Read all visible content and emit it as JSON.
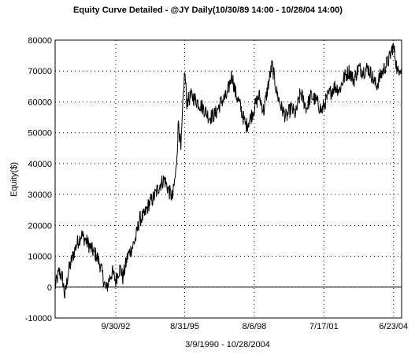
{
  "chart_data": {
    "type": "line",
    "title": "Equity Curve Detailed - @JY Daily(10/30/89 14:00 - 10/28/04 14:00)",
    "xlabel": "3/9/1990 - 10/28/2004",
    "ylabel": "Equity($)",
    "ylim": [
      -10000,
      80000
    ],
    "xlim": [
      1990.19,
      2004.82
    ],
    "y_ticks": [
      "80000",
      "70000",
      "60000",
      "50000",
      "40000",
      "30000",
      "20000",
      "10000",
      "0",
      "-10000"
    ],
    "x_ticks": [
      {
        "label": "9/30/92",
        "x": 1992.75
      },
      {
        "label": "8/31/95",
        "x": 1995.66
      },
      {
        "label": "8/6/98",
        "x": 1998.6
      },
      {
        "label": "7/17/01",
        "x": 2001.54
      },
      {
        "label": "6/23/04",
        "x": 2004.48
      }
    ],
    "grid": "dotted",
    "zero_line": true,
    "series": [
      {
        "color": "#000000",
        "points": [
          [
            1990.19,
            0
          ],
          [
            1990.35,
            5000
          ],
          [
            1990.5,
            3000
          ],
          [
            1990.6,
            -3000
          ],
          [
            1990.75,
            5000
          ],
          [
            1990.9,
            9000
          ],
          [
            1991.1,
            14000
          ],
          [
            1991.3,
            17000
          ],
          [
            1991.5,
            15000
          ],
          [
            1991.75,
            12000
          ],
          [
            1991.95,
            10000
          ],
          [
            1992.1,
            7000
          ],
          [
            1992.25,
            2000
          ],
          [
            1992.35,
            -1000
          ],
          [
            1992.45,
            2000
          ],
          [
            1992.6,
            5000
          ],
          [
            1992.75,
            2000
          ],
          [
            1992.85,
            5000
          ],
          [
            1992.95,
            6000
          ],
          [
            1993.05,
            3000
          ],
          [
            1993.25,
            10000
          ],
          [
            1993.45,
            13000
          ],
          [
            1993.6,
            16000
          ],
          [
            1993.75,
            22000
          ],
          [
            1993.95,
            23000
          ],
          [
            1994.15,
            27000
          ],
          [
            1994.35,
            29000
          ],
          [
            1994.6,
            33000
          ],
          [
            1994.8,
            35000
          ],
          [
            1995.0,
            31000
          ],
          [
            1995.15,
            29000
          ],
          [
            1995.3,
            38000
          ],
          [
            1995.4,
            54000
          ],
          [
            1995.5,
            44000
          ],
          [
            1995.58,
            58000
          ],
          [
            1995.66,
            70000
          ],
          [
            1995.75,
            60000
          ],
          [
            1995.95,
            62000
          ],
          [
            1996.2,
            60000
          ],
          [
            1996.45,
            58000
          ],
          [
            1996.7,
            55000
          ],
          [
            1996.95,
            56000
          ],
          [
            1997.2,
            60000
          ],
          [
            1997.45,
            62000
          ],
          [
            1997.65,
            69000
          ],
          [
            1997.8,
            63000
          ],
          [
            1997.95,
            60000
          ],
          [
            1998.1,
            56000
          ],
          [
            1998.25,
            52000
          ],
          [
            1998.45,
            55000
          ],
          [
            1998.6,
            58000
          ],
          [
            1998.8,
            62000
          ],
          [
            1999.0,
            57000
          ],
          [
            1999.2,
            66000
          ],
          [
            1999.35,
            72000
          ],
          [
            1999.55,
            63000
          ],
          [
            1999.75,
            58000
          ],
          [
            1999.95,
            55000
          ],
          [
            2000.15,
            58000
          ],
          [
            2000.35,
            56000
          ],
          [
            2000.55,
            63000
          ],
          [
            2000.8,
            58000
          ],
          [
            2001.0,
            62000
          ],
          [
            2001.25,
            60000
          ],
          [
            2001.45,
            57000
          ],
          [
            2001.6,
            60000
          ],
          [
            2001.8,
            63000
          ],
          [
            2002.0,
            65000
          ],
          [
            2002.2,
            64000
          ],
          [
            2002.4,
            68000
          ],
          [
            2002.6,
            70000
          ],
          [
            2002.8,
            67000
          ],
          [
            2003.0,
            71000
          ],
          [
            2003.2,
            70000
          ],
          [
            2003.4,
            71000
          ],
          [
            2003.6,
            68000
          ],
          [
            2003.75,
            65000
          ],
          [
            2003.9,
            68000
          ],
          [
            2004.1,
            71000
          ],
          [
            2004.3,
            74000
          ],
          [
            2004.45,
            78000
          ],
          [
            2004.55,
            75000
          ],
          [
            2004.65,
            69000
          ],
          [
            2004.75,
            72000
          ],
          [
            2004.82,
            70000
          ]
        ]
      }
    ]
  }
}
